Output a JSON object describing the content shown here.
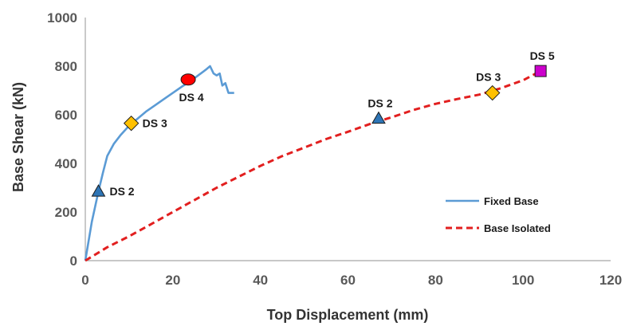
{
  "chart_data": {
    "type": "line",
    "title": "",
    "xlabel": "Top Displacement (mm)",
    "ylabel": "Base Shear (kN)",
    "xlim": [
      0,
      120
    ],
    "ylim": [
      0,
      1000
    ],
    "xticks": [
      "0",
      "20",
      "40",
      "60",
      "80",
      "100",
      "120"
    ],
    "yticks": [
      "0",
      "200",
      "400",
      "600",
      "800",
      "1000"
    ],
    "grid": false,
    "legend_position": "bottom-right",
    "series": [
      {
        "name": "Fixed Base",
        "color": "#5b9bd5",
        "dash": "solid",
        "x": [
          0,
          1.5,
          3,
          4,
          5,
          6.5,
          8,
          10,
          12,
          14,
          16,
          18,
          20,
          22,
          24,
          26,
          27.5,
          28.5,
          29.3,
          30,
          30.7,
          31.3,
          32,
          32.7,
          33.3,
          34
        ],
        "y": [
          0,
          160,
          285,
          360,
          430,
          480,
          515,
          555,
          585,
          615,
          640,
          665,
          690,
          715,
          738,
          765,
          785,
          800,
          770,
          762,
          770,
          720,
          730,
          690,
          690,
          690
        ]
      },
      {
        "name": "Base Isolated",
        "color": "#e21f1f",
        "dash": "dashed",
        "x": [
          0,
          5,
          10,
          15,
          20,
          25,
          30,
          35,
          40,
          45,
          50,
          55,
          60,
          65,
          70,
          75,
          80,
          85,
          90,
          95,
          100,
          104
        ],
        "y": [
          0,
          55,
          100,
          150,
          200,
          250,
          300,
          345,
          390,
          430,
          465,
          500,
          530,
          562,
          590,
          620,
          645,
          665,
          683,
          710,
          742,
          780
        ]
      }
    ],
    "annotations": [
      {
        "label": "DS 2",
        "marker": "triangle",
        "color": "#2e75b6",
        "x": 3,
        "y": 285,
        "series": "Fixed Base",
        "label_pos": "right"
      },
      {
        "label": "DS 3",
        "marker": "diamond",
        "color": "#ffc000",
        "x": 10.5,
        "y": 565,
        "series": "Fixed Base",
        "label_pos": "right"
      },
      {
        "label": "DS 4",
        "marker": "circle",
        "color": "#ff0000",
        "x": 23.5,
        "y": 745,
        "series": "Fixed Base",
        "label_pos": "below"
      },
      {
        "label": "DS 2",
        "marker": "triangle",
        "color": "#2e75b6",
        "x": 67,
        "y": 585,
        "series": "Base Isolated",
        "label_pos": "above"
      },
      {
        "label": "DS 3",
        "marker": "diamond",
        "color": "#ffc000",
        "x": 93,
        "y": 690,
        "series": "Base Isolated",
        "label_pos": "above-left"
      },
      {
        "label": "DS 5",
        "marker": "square",
        "color": "#cc00cc",
        "x": 104,
        "y": 780,
        "series": "Base Isolated",
        "label_pos": "above"
      }
    ]
  }
}
